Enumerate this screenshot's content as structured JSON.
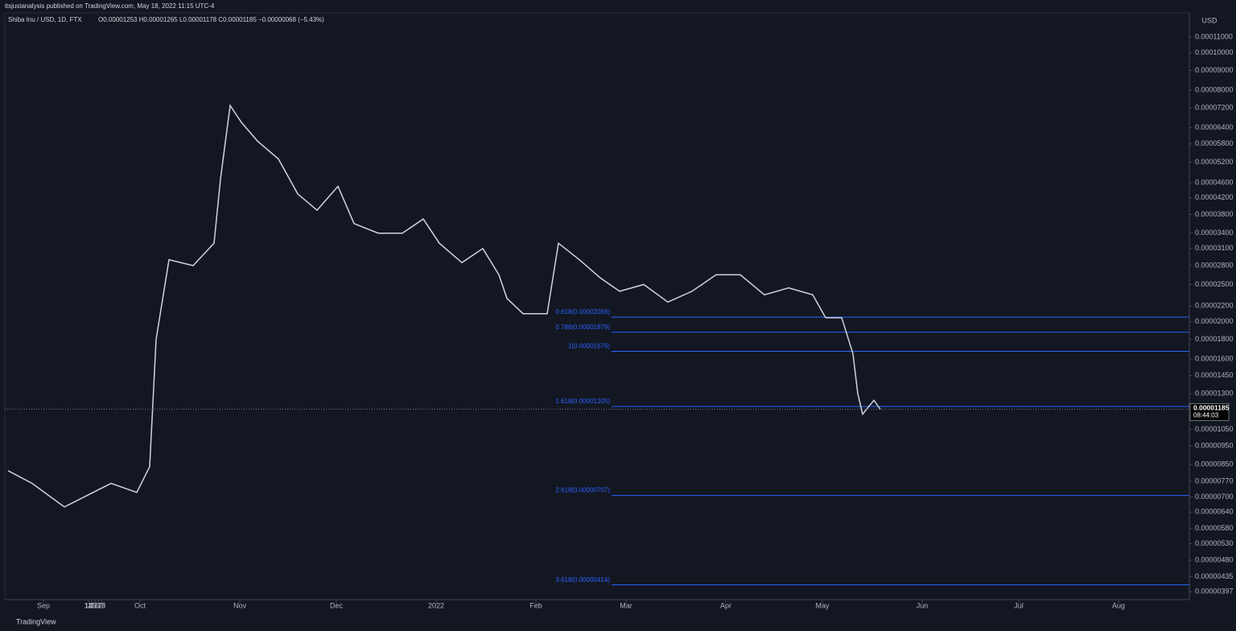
{
  "header": {
    "published": "itsjustanalysis published on TradingView.com, May 18, 2022 11:15 UTC-4",
    "symbol": "Shiba Inu / USD, 1D, FTX",
    "ohlc": "O0.00001253 H0.00001265 L0.00001178 C0.00001185 −0.00000068 (−5.43%)"
  },
  "footer": {
    "brand": "TradingView"
  },
  "chart_data": {
    "type": "line",
    "currency": "USD",
    "price_label": "0.00001185",
    "countdown": "08:44:03",
    "log_scale": true,
    "grid": false,
    "color": "#d1d4dc",
    "series": [
      {
        "name": "Shiba Inu / USD",
        "color": "#d1d4dc",
        "x": [
          -11,
          -3.5,
          6.5,
          14,
          21,
          29,
          33,
          35,
          39,
          46.5,
          53,
          55,
          58,
          61.5,
          66.5,
          73,
          79,
          85,
          91.5,
          96.5,
          104,
          111.5,
          118,
          123,
          130,
          136.5,
          141.5,
          144,
          149,
          156.5,
          160,
          166.5,
          173,
          179,
          186.5,
          194,
          201.5,
          209,
          216.5,
          224,
          231.5,
          239,
          243,
          248,
          251.5,
          253,
          254.5,
          258,
          260
        ],
        "values": [
          8.2e-06,
          7.6e-06,
          6.6e-06,
          7.1e-06,
          7.6e-06,
          7.2e-06,
          8.4e-06,
          1.8e-05,
          2.9e-05,
          2.8e-05,
          3.2e-05,
          4.7e-05,
          7.3e-05,
          6.6e-05,
          5.9e-05,
          5.3e-05,
          4.3e-05,
          3.9e-05,
          4.5e-05,
          3.6e-05,
          3.4e-05,
          3.4e-05,
          3.7e-05,
          3.2e-05,
          2.85e-05,
          3.1e-05,
          2.65e-05,
          2.3e-05,
          2.1e-05,
          2.1e-05,
          3.2e-05,
          2.9e-05,
          2.6e-05,
          2.4e-05,
          2.5e-05,
          2.25e-05,
          2.4e-05,
          2.65e-05,
          2.65e-05,
          2.35e-05,
          2.45e-05,
          2.35e-05,
          2.05e-05,
          2.05e-05,
          1.65e-05,
          1.3e-05,
          1.15e-05,
          1.25e-05,
          1.185e-05
        ]
      }
    ],
    "xlim": [
      -12,
      356
    ],
    "xticks": [
      {
        "value": 0,
        "label": "Sep"
      },
      14,
      {
        "value": 30,
        "label": "Oct"
      },
      18,
      {
        "value": 61,
        "label": "Nov"
      },
      15,
      {
        "value": 91,
        "label": "Dec"
      },
      14,
      {
        "value": 122,
        "label": "2022"
      },
      17,
      {
        "value": 153,
        "label": "Feb"
      },
      14,
      {
        "value": 181,
        "label": "Mar"
      },
      14,
      {
        "value": 212,
        "label": "Apr"
      },
      18,
      {
        "value": 242,
        "label": "May"
      },
      16,
      {
        "value": 273,
        "label": "Jun"
      },
      14,
      {
        "value": 303,
        "label": "Jul"
      },
      18,
      {
        "value": 334,
        "label": "Aug"
      },
      15
    ],
    "ylim": [
      3.79e-06,
      0.0001271
    ],
    "yticks": [
      {
        "value": 0.00011,
        "label": "0.00011000"
      },
      {
        "value": 0.0001,
        "label": "0.00010000"
      },
      {
        "value": 9e-05,
        "label": "0.00009000"
      },
      {
        "value": 8e-05,
        "label": "0.00008000"
      },
      {
        "value": 7.2e-05,
        "label": "0.00007200"
      },
      {
        "value": 6.4e-05,
        "label": "0.00006400"
      },
      {
        "value": 5.8e-05,
        "label": "0.00005800"
      },
      {
        "value": 5.2e-05,
        "label": "0.00005200"
      },
      {
        "value": 4.6e-05,
        "label": "0.00004600"
      },
      {
        "value": 4.2e-05,
        "label": "0.00004200"
      },
      {
        "value": 3.8e-05,
        "label": "0.00003800"
      },
      {
        "value": 3.4e-05,
        "label": "0.00003400"
      },
      {
        "value": 3.1e-05,
        "label": "0.00003100"
      },
      {
        "value": 2.8e-05,
        "label": "0.00002800"
      },
      {
        "value": 2.5e-05,
        "label": "0.00002500"
      },
      {
        "value": 2.2e-05,
        "label": "0.00002200"
      },
      {
        "value": 2e-05,
        "label": "0.00002000"
      },
      {
        "value": 1.8e-05,
        "label": "0.00001800"
      },
      {
        "value": 1.6e-05,
        "label": "0.00001600"
      },
      {
        "value": 1.45e-05,
        "label": "0.00001450"
      },
      {
        "value": 1.3e-05,
        "label": "0.00001300"
      },
      {
        "value": 1.05e-05,
        "label": "0.00001050"
      },
      {
        "value": 9.5e-06,
        "label": "0.00000950"
      },
      {
        "value": 8.5e-06,
        "label": "0.00000850"
      },
      {
        "value": 7.7e-06,
        "label": "0.00000770"
      },
      {
        "value": 7e-06,
        "label": "0.00000700"
      },
      {
        "value": 6.4e-06,
        "label": "0.00000640"
      },
      {
        "value": 5.8e-06,
        "label": "0.00000580"
      },
      {
        "value": 5.3e-06,
        "label": "0.00000530"
      },
      {
        "value": 4.8e-06,
        "label": "0.00000480"
      },
      {
        "value": 4.35e-06,
        "label": "0.00000435"
      },
      {
        "value": 3.97e-06,
        "label": "0.00000397"
      }
    ],
    "fib_levels": [
      {
        "label": "0.618(0.00002056)",
        "value": 2.056e-05
      },
      {
        "label": "0.786(0.00001879)",
        "value": 1.879e-05
      },
      {
        "label": "1(0.00001676)",
        "value": 1.676e-05
      },
      {
        "label": "1.618(0.00001205)",
        "value": 1.205e-05
      },
      {
        "label": "2.618(0.00000707)",
        "value": 7.07e-06
      },
      {
        "label": "3.618(0.00000414)",
        "value": 4.14e-06
      }
    ],
    "fib_color": "#2962ff"
  }
}
